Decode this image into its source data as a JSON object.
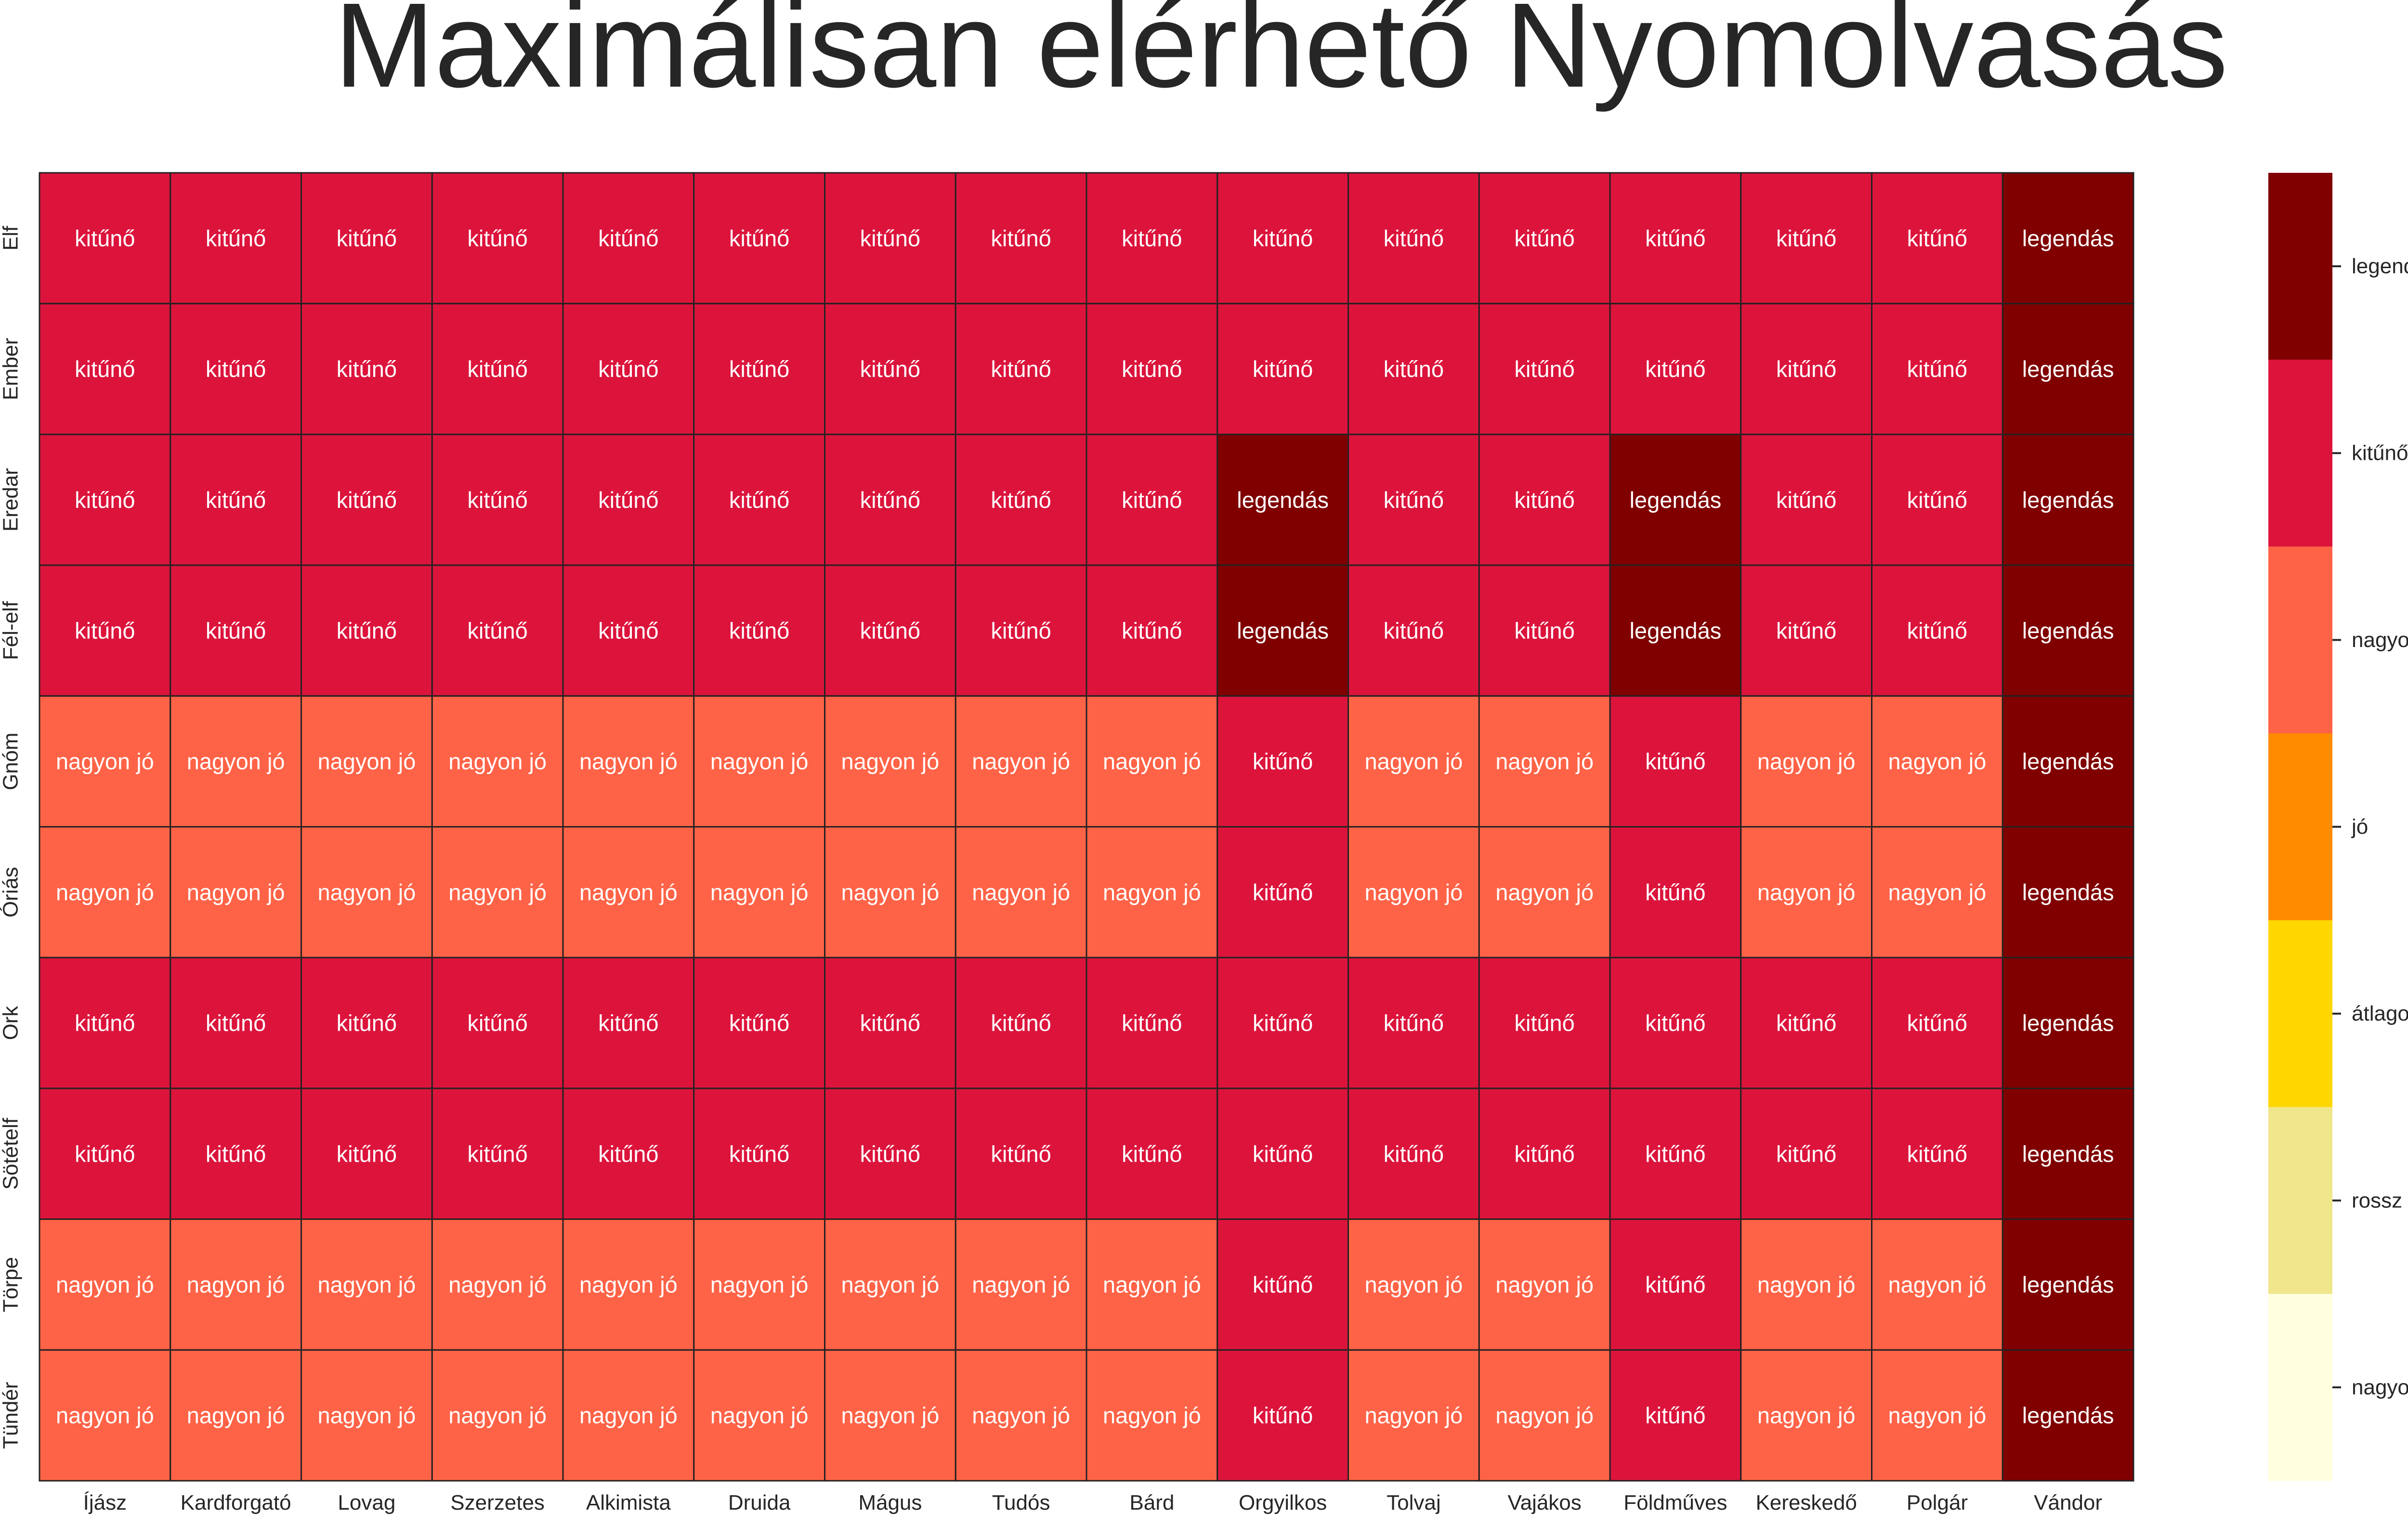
{
  "chart_data": {
    "type": "heatmap",
    "title": "Maximálisan elérhető Nyomolvasás",
    "xlabel": "",
    "ylabel": "",
    "x_categories": [
      "Íjász",
      "Kardforgató",
      "Lovag",
      "Szerzetes",
      "Alkimista",
      "Druida",
      "Mágus",
      "Tudós",
      "Bárd",
      "Orgyilkos",
      "Tolvaj",
      "Vajákos",
      "Földműves",
      "Kereskedő",
      "Polgár",
      "Vándor"
    ],
    "y_categories": [
      "Elf",
      "Ember",
      "Eredar",
      "Fél-elf",
      "Gnóm",
      "Óriás",
      "Ork",
      "Sötételf",
      "Törpe",
      "Tündér"
    ],
    "levels": [
      "nagyon rossz",
      "rossz",
      "átlagos",
      "jó",
      "nagyon jó",
      "kitűnő",
      "legendás"
    ],
    "level_colors": {
      "nagyon rossz": "#ffffe0",
      "rossz": "#f0e68c",
      "átlagos": "#ffd700",
      "jó": "#ff8c00",
      "nagyon jó": "#ff6347",
      "kitűnő": "#dc143c",
      "legendás": "#800000"
    },
    "values": [
      [
        "kitűnő",
        "kitűnő",
        "kitűnő",
        "kitűnő",
        "kitűnő",
        "kitűnő",
        "kitűnő",
        "kitűnő",
        "kitűnő",
        "kitűnő",
        "kitűnő",
        "kitűnő",
        "kitűnő",
        "kitűnő",
        "kitűnő",
        "legendás"
      ],
      [
        "kitűnő",
        "kitűnő",
        "kitűnő",
        "kitűnő",
        "kitűnő",
        "kitűnő",
        "kitűnő",
        "kitűnő",
        "kitűnő",
        "kitűnő",
        "kitűnő",
        "kitűnő",
        "kitűnő",
        "kitűnő",
        "kitűnő",
        "legendás"
      ],
      [
        "kitűnő",
        "kitűnő",
        "kitűnő",
        "kitűnő",
        "kitűnő",
        "kitűnő",
        "kitűnő",
        "kitűnő",
        "kitűnő",
        "legendás",
        "kitűnő",
        "kitűnő",
        "legendás",
        "kitűnő",
        "kitűnő",
        "legendás"
      ],
      [
        "kitűnő",
        "kitűnő",
        "kitűnő",
        "kitűnő",
        "kitűnő",
        "kitűnő",
        "kitűnő",
        "kitűnő",
        "kitűnő",
        "legendás",
        "kitűnő",
        "kitűnő",
        "legendás",
        "kitűnő",
        "kitűnő",
        "legendás"
      ],
      [
        "nagyon jó",
        "nagyon jó",
        "nagyon jó",
        "nagyon jó",
        "nagyon jó",
        "nagyon jó",
        "nagyon jó",
        "nagyon jó",
        "nagyon jó",
        "kitűnő",
        "nagyon jó",
        "nagyon jó",
        "kitűnő",
        "nagyon jó",
        "nagyon jó",
        "legendás"
      ],
      [
        "nagyon jó",
        "nagyon jó",
        "nagyon jó",
        "nagyon jó",
        "nagyon jó",
        "nagyon jó",
        "nagyon jó",
        "nagyon jó",
        "nagyon jó",
        "kitűnő",
        "nagyon jó",
        "nagyon jó",
        "kitűnő",
        "nagyon jó",
        "nagyon jó",
        "legendás"
      ],
      [
        "kitűnő",
        "kitűnő",
        "kitűnő",
        "kitűnő",
        "kitűnő",
        "kitűnő",
        "kitűnő",
        "kitűnő",
        "kitűnő",
        "kitűnő",
        "kitűnő",
        "kitűnő",
        "kitűnő",
        "kitűnő",
        "kitűnő",
        "legendás"
      ],
      [
        "kitűnő",
        "kitűnő",
        "kitűnő",
        "kitűnő",
        "kitűnő",
        "kitűnő",
        "kitűnő",
        "kitűnő",
        "kitűnő",
        "kitűnő",
        "kitűnő",
        "kitűnő",
        "kitűnő",
        "kitűnő",
        "kitűnő",
        "legendás"
      ],
      [
        "nagyon jó",
        "nagyon jó",
        "nagyon jó",
        "nagyon jó",
        "nagyon jó",
        "nagyon jó",
        "nagyon jó",
        "nagyon jó",
        "nagyon jó",
        "kitűnő",
        "nagyon jó",
        "nagyon jó",
        "kitűnő",
        "nagyon jó",
        "nagyon jó",
        "legendás"
      ],
      [
        "nagyon jó",
        "nagyon jó",
        "nagyon jó",
        "nagyon jó",
        "nagyon jó",
        "nagyon jó",
        "nagyon jó",
        "nagyon jó",
        "nagyon jó",
        "kitűnő",
        "nagyon jó",
        "nagyon jó",
        "kitűnő",
        "nagyon jó",
        "nagyon jó",
        "legendás"
      ]
    ],
    "colorbar": {
      "labels": [
        "legendás",
        "kitűnő",
        "nagyon jó",
        "jó",
        "átlagos",
        "rossz",
        "nagyon rossz"
      ],
      "position": "right"
    },
    "grid": true,
    "legend": "colorbar-right"
  }
}
